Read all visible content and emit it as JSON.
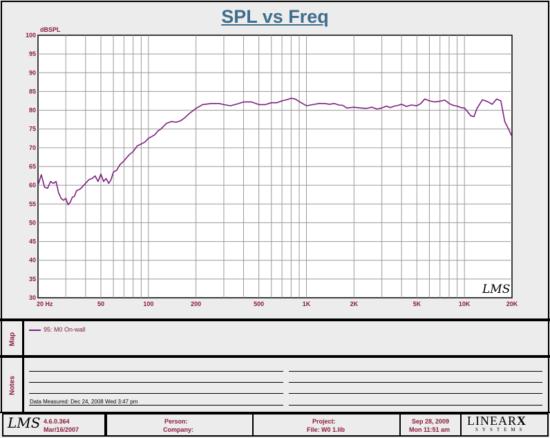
{
  "chart_data": {
    "type": "line",
    "title": "SPL vs Freq",
    "ylabel": "dBSPL",
    "xscale": "log",
    "xlim": [
      20,
      20000
    ],
    "ylim": [
      30,
      100
    ],
    "y_ticks": [
      "30",
      "35",
      "40",
      "45",
      "50",
      "55",
      "60",
      "65",
      "70",
      "75",
      "80",
      "85",
      "90",
      "95",
      "100"
    ],
    "x_ticks": [
      {
        "value": 20,
        "label": "20 Hz"
      },
      {
        "value": 50,
        "label": "50"
      },
      {
        "value": 100,
        "label": "100"
      },
      {
        "value": 200,
        "label": "200"
      },
      {
        "value": 500,
        "label": "500"
      },
      {
        "value": 1000,
        "label": "1K"
      },
      {
        "value": 2000,
        "label": "2K"
      },
      {
        "value": 5000,
        "label": "5K"
      },
      {
        "value": 10000,
        "label": "10K"
      },
      {
        "value": 20000,
        "label": "20K"
      }
    ],
    "grid": true,
    "series": [
      {
        "name": "95: M0 On-wall",
        "color": "#7d1e7d",
        "x": [
          20,
          21,
          22,
          23,
          24,
          25,
          26,
          27,
          28,
          29,
          30,
          31,
          32,
          33,
          34,
          35,
          36,
          37,
          38,
          40,
          42,
          44,
          46,
          48,
          50,
          52,
          54,
          56,
          58,
          60,
          63,
          66,
          70,
          75,
          80,
          85,
          90,
          95,
          100,
          105,
          110,
          115,
          120,
          130,
          140,
          150,
          160,
          170,
          180,
          200,
          220,
          250,
          280,
          300,
          330,
          360,
          400,
          450,
          500,
          550,
          600,
          650,
          700,
          750,
          800,
          850,
          900,
          1000,
          1100,
          1200,
          1300,
          1400,
          1500,
          1600,
          1700,
          1800,
          2000,
          2200,
          2400,
          2600,
          2800,
          3000,
          3200,
          3400,
          3600,
          3800,
          4000,
          4300,
          4600,
          5000,
          5300,
          5600,
          6000,
          6500,
          7000,
          7500,
          8000,
          8500,
          9000,
          9500,
          10000,
          10500,
          11000,
          11500,
          12000,
          13000,
          14000,
          15000,
          16000,
          17000,
          18000,
          19000,
          20000
        ],
        "y": [
          60,
          62.8,
          59.5,
          59.2,
          61,
          60.5,
          61,
          58,
          56.5,
          56,
          56.5,
          54.8,
          55.5,
          56.8,
          57,
          58.5,
          58.8,
          59,
          59.5,
          60.5,
          61.5,
          61.8,
          62.5,
          61,
          63,
          61,
          61.8,
          60.5,
          61.5,
          63.5,
          64,
          65.5,
          66.5,
          68,
          69,
          70.5,
          71,
          71.5,
          72.5,
          73,
          73.5,
          74.5,
          75,
          76.5,
          77,
          76.8,
          77.2,
          78,
          79,
          80.5,
          81.5,
          81.8,
          81.8,
          81.5,
          81.2,
          81.6,
          82.2,
          82.2,
          81.5,
          81.5,
          82,
          82,
          82.5,
          82.8,
          83.2,
          83,
          82.3,
          81.2,
          81.5,
          81.8,
          81.8,
          81.6,
          81.8,
          81.4,
          81.3,
          80.6,
          80.8,
          80.6,
          80.5,
          80.8,
          80.3,
          80.6,
          81.1,
          80.7,
          81.1,
          81.3,
          81.6,
          81,
          81.4,
          81.2,
          81.8,
          83,
          82.5,
          82.2,
          82.4,
          82.7,
          81.8,
          81.3,
          81.1,
          80.7,
          80.6,
          79.5,
          78.5,
          78.3,
          80.5,
          82.8,
          82.3,
          81.6,
          83,
          82.5,
          77,
          75,
          73
        ]
      }
    ]
  },
  "map": {
    "label": "Map"
  },
  "notes": {
    "label": "Notes",
    "measured": "Data Measured: Dec 24, 2008  Wed  3:47 pm"
  },
  "footer": {
    "version": "4.6.0.364",
    "build_date": "Mar/16/2007",
    "person_label": "Person:",
    "company_label": "Company:",
    "project_label": "Project:",
    "file_label": "File: W0 1.lib",
    "print_date": "Sep 28, 2009",
    "print_time": "Mon 11:51 am",
    "logo_lms": "LMS",
    "brand_main": "LINEAR",
    "brand_x": "X",
    "brand_sub": "SYSTEMS"
  }
}
